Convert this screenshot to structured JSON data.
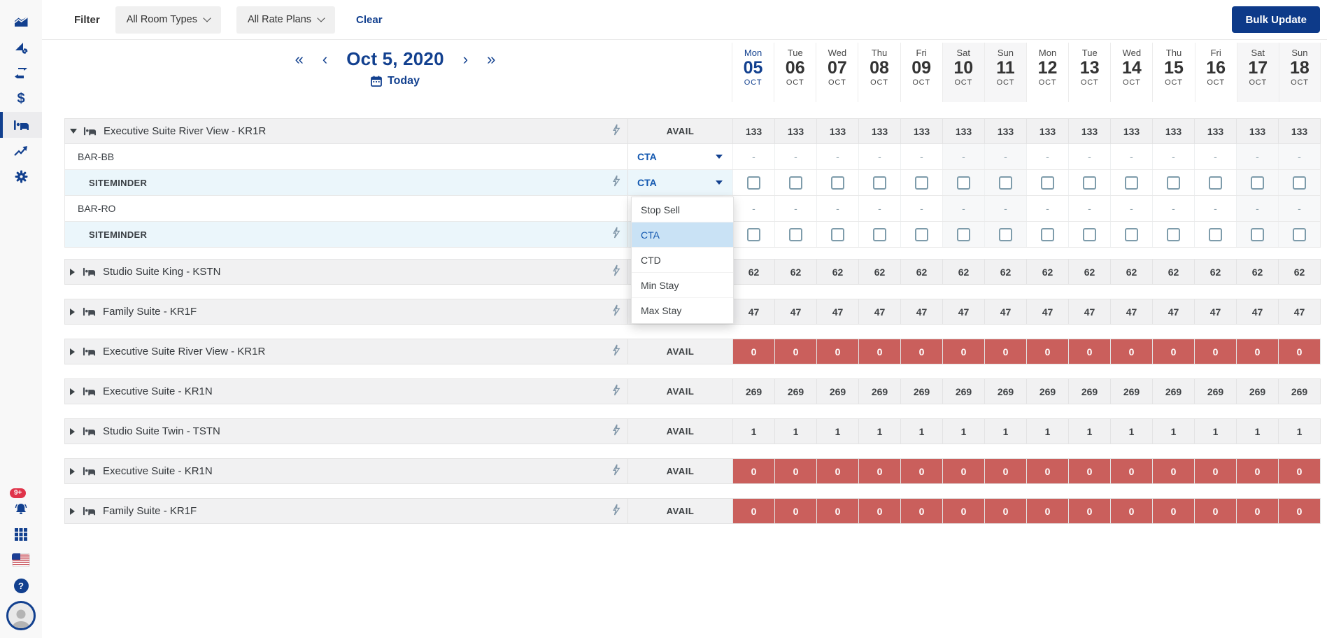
{
  "colors": {
    "primary_navy": "#12408f",
    "button_navy": "#0d3a89",
    "link_blue": "#1358b0",
    "soldout_red": "#ca5f5c",
    "row_gray": "#f1f1f2",
    "channel_row_blue": "#ebf6fb",
    "menu_highlight": "#c9e2f5",
    "badge_red": "#e0344a"
  },
  "sidebar": {
    "top_icons": [
      "occupancy-chart",
      "rates-gear",
      "sync-arrows",
      "payments-dollar",
      "rooms-bed",
      "trends",
      "settings-gear"
    ],
    "active_icon": "rooms-bed",
    "notification_badge": "9+",
    "bottom_icons": [
      "notifications-bell",
      "apps-grid",
      "language-flag-us",
      "help",
      "user-avatar"
    ]
  },
  "filter_bar": {
    "label": "Filter",
    "room_types_value": "All Room Types",
    "rate_plans_value": "All Rate Plans",
    "clear_label": "Clear",
    "bulk_update_label": "Bulk Update"
  },
  "date_nav": {
    "current_date": "Oct 5, 2020",
    "today_label": "Today",
    "arrows": [
      "«",
      "‹",
      "›",
      "»"
    ]
  },
  "calendar": {
    "days": [
      {
        "dow": "Mon",
        "day": "05",
        "month": "OCT",
        "today": true,
        "weekend": false
      },
      {
        "dow": "Tue",
        "day": "06",
        "month": "OCT",
        "today": false,
        "weekend": false
      },
      {
        "dow": "Wed",
        "day": "07",
        "month": "OCT",
        "today": false,
        "weekend": false
      },
      {
        "dow": "Thu",
        "day": "08",
        "month": "OCT",
        "today": false,
        "weekend": false
      },
      {
        "dow": "Fri",
        "day": "09",
        "month": "OCT",
        "today": false,
        "weekend": false
      },
      {
        "dow": "Sat",
        "day": "10",
        "month": "OCT",
        "today": false,
        "weekend": true
      },
      {
        "dow": "Sun",
        "day": "11",
        "month": "OCT",
        "today": false,
        "weekend": true
      },
      {
        "dow": "Mon",
        "day": "12",
        "month": "OCT",
        "today": false,
        "weekend": false
      },
      {
        "dow": "Tue",
        "day": "13",
        "month": "OCT",
        "today": false,
        "weekend": false
      },
      {
        "dow": "Wed",
        "day": "14",
        "month": "OCT",
        "today": false,
        "weekend": false
      },
      {
        "dow": "Thu",
        "day": "15",
        "month": "OCT",
        "today": false,
        "weekend": false
      },
      {
        "dow": "Fri",
        "day": "16",
        "month": "OCT",
        "today": false,
        "weekend": false
      },
      {
        "dow": "Sat",
        "day": "17",
        "month": "OCT",
        "today": false,
        "weekend": true
      },
      {
        "dow": "Sun",
        "day": "18",
        "month": "OCT",
        "today": false,
        "weekend": true
      }
    ]
  },
  "grid": {
    "avail_label": "AVAIL",
    "expanded_group": {
      "name": "Executive Suite River View - KR1R",
      "expanded": true,
      "avail_values": [
        "133",
        "133",
        "133",
        "133",
        "133",
        "133",
        "133",
        "133",
        "133",
        "133",
        "133",
        "133",
        "133",
        "133"
      ],
      "rows": [
        {
          "label": "BAR-BB",
          "kind": "rate-plan",
          "control": "select",
          "control_value": "CTA",
          "cells": "dash",
          "bolt": false,
          "highlight": false
        },
        {
          "label": "SITEMINDER",
          "kind": "channel",
          "control": "select",
          "control_value": "CTA",
          "open": true,
          "cells": "checkbox",
          "bolt": true,
          "highlight": true
        },
        {
          "label": "BAR-RO",
          "kind": "rate-plan",
          "control": "none",
          "cells": "dash",
          "bolt": false,
          "highlight": false
        },
        {
          "label": "SITEMINDER",
          "kind": "channel",
          "control": "none",
          "cells": "checkbox",
          "bolt": true,
          "highlight": true
        }
      ]
    },
    "dropdown_menu": {
      "options": [
        "Stop Sell",
        "CTA",
        "CTD",
        "Min Stay",
        "Max Stay"
      ],
      "selected": "CTA"
    },
    "collapsed_groups": [
      {
        "name": "Studio Suite King - KSTN",
        "soldout": false,
        "values": [
          "62",
          "62",
          "62",
          "62",
          "62",
          "62",
          "62",
          "62",
          "62",
          "62",
          "62",
          "62",
          "62",
          "62"
        ]
      },
      {
        "name": "Family Suite - KR1F",
        "soldout": false,
        "values": [
          "47",
          "47",
          "47",
          "47",
          "47",
          "47",
          "47",
          "47",
          "47",
          "47",
          "47",
          "47",
          "47",
          "47"
        ]
      },
      {
        "name": "Executive Suite River View - KR1R",
        "soldout": true,
        "values": [
          "0",
          "0",
          "0",
          "0",
          "0",
          "0",
          "0",
          "0",
          "0",
          "0",
          "0",
          "0",
          "0",
          "0"
        ]
      },
      {
        "name": "Executive Suite - KR1N",
        "soldout": false,
        "values": [
          "269",
          "269",
          "269",
          "269",
          "269",
          "269",
          "269",
          "269",
          "269",
          "269",
          "269",
          "269",
          "269",
          "269"
        ]
      },
      {
        "name": "Studio Suite Twin - TSTN",
        "soldout": false,
        "values": [
          "1",
          "1",
          "1",
          "1",
          "1",
          "1",
          "1",
          "1",
          "1",
          "1",
          "1",
          "1",
          "1",
          "1"
        ]
      },
      {
        "name": "Executive Suite - KR1N",
        "soldout": true,
        "values": [
          "0",
          "0",
          "0",
          "0",
          "0",
          "0",
          "0",
          "0",
          "0",
          "0",
          "0",
          "0",
          "0",
          "0"
        ]
      },
      {
        "name": "Family Suite - KR1F",
        "soldout": true,
        "values": [
          "0",
          "0",
          "0",
          "0",
          "0",
          "0",
          "0",
          "0",
          "0",
          "0",
          "0",
          "0",
          "0",
          "0"
        ]
      }
    ]
  }
}
